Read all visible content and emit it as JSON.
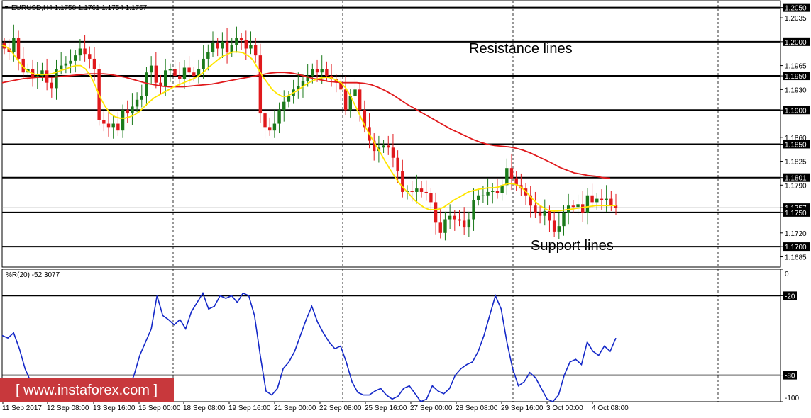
{
  "chart_data": [
    {
      "type": "candlestick",
      "symbol_header": "EURUSD,H4  1.1758 1.1761 1.1754 1.1757",
      "ylim": [
        1.167,
        1.206
      ],
      "price_ticks": [
        "1.2050",
        "1.2035",
        "1.2000",
        "1.1965",
        "1.1950",
        "1.1930",
        "1.1900",
        "1.1860",
        "1.1850",
        "1.1825",
        "1.1801",
        "1.1790",
        "1.1757",
        "1.1750",
        "1.1720",
        "1.1700",
        "1.1685"
      ],
      "highlighted_ticks": [
        "1.2050",
        "1.2000",
        "1.1950",
        "1.1900",
        "1.1850",
        "1.1801",
        "1.1757",
        "1.1750",
        "1.1700"
      ],
      "levels": [
        1.205,
        1.2,
        1.195,
        1.19,
        1.185,
        1.1801,
        1.175,
        1.17
      ],
      "current_price": 1.1757,
      "annotations": [
        "Resistance lines",
        "Support lines"
      ],
      "closes": [
        1.199,
        1.1985,
        1.2005,
        1.1975,
        1.1955,
        1.196,
        1.1948,
        1.195,
        1.1958,
        1.194,
        1.1932,
        1.196,
        1.1965,
        1.1968,
        1.1972,
        1.198,
        1.199,
        1.1982,
        1.1975,
        1.196,
        1.1885,
        1.188,
        1.1875,
        1.188,
        1.187,
        1.19,
        1.1895,
        1.1905,
        1.1915,
        1.192,
        1.1955,
        1.1965,
        1.194,
        1.1935,
        1.1958,
        1.196,
        1.195,
        1.1945,
        1.1962,
        1.1955,
        1.195,
        1.196,
        1.1975,
        1.1985,
        1.1998,
        1.199,
        1.2,
        1.1985,
        1.1995,
        1.2005,
        1.2002,
        1.199,
        1.1995,
        1.198,
        1.1895,
        1.1875,
        1.187,
        1.188,
        1.19,
        1.1912,
        1.192,
        1.193,
        1.1935,
        1.1942,
        1.195,
        1.196,
        1.1955,
        1.196,
        1.195,
        1.1945,
        1.194,
        1.193,
        1.19,
        1.192,
        1.193,
        1.19,
        1.1875,
        1.1855,
        1.184,
        1.1845,
        1.1848,
        1.1845,
        1.183,
        1.181,
        1.178,
        1.1782,
        1.178,
        1.1785,
        1.178,
        1.1778,
        1.1765,
        1.1735,
        1.172,
        1.174,
        1.1745,
        1.174,
        1.1738,
        1.1728,
        1.174,
        1.1768,
        1.1775,
        1.1775,
        1.178,
        1.1782,
        1.1778,
        1.179,
        1.1815,
        1.18,
        1.179,
        1.1785,
        1.1775,
        1.176,
        1.175,
        1.1745,
        1.1752,
        1.1738,
        1.1722,
        1.173,
        1.175,
        1.176,
        1.1758,
        1.1762,
        1.175,
        1.1775,
        1.1765,
        1.177,
        1.1768,
        1.177,
        1.176,
        1.1757
      ],
      "ma_fast": [
        1.1995,
        1.1992,
        1.1985,
        1.1975,
        1.1965,
        1.1958,
        1.1954,
        1.1952,
        1.1952,
        1.1952,
        1.1953,
        1.1955,
        1.1958,
        1.196,
        1.1963,
        1.1965,
        1.1965,
        1.196,
        1.195,
        1.1935,
        1.1918,
        1.1905,
        1.1895,
        1.189,
        1.1888,
        1.1888,
        1.189,
        1.1893,
        1.1898,
        1.1905,
        1.1912,
        1.1918,
        1.1922,
        1.1926,
        1.193,
        1.1934,
        1.1937,
        1.194,
        1.1943,
        1.1946,
        1.195,
        1.1955,
        1.1962,
        1.1968,
        1.1974,
        1.1979,
        1.1982,
        1.1985,
        1.1985,
        1.1984,
        1.198,
        1.1974,
        1.1962,
        1.195,
        1.194,
        1.193,
        1.1924,
        1.192,
        1.192,
        1.1924,
        1.1928,
        1.1933,
        1.1938,
        1.1942,
        1.1945,
        1.1947,
        1.1948,
        1.1947,
        1.1944,
        1.194,
        1.1932,
        1.192,
        1.1905,
        1.189,
        1.1875,
        1.1862,
        1.185,
        1.1838,
        1.1825,
        1.1813,
        1.1802,
        1.1792,
        1.1784,
        1.1776,
        1.1768,
        1.1762,
        1.1757,
        1.1754,
        1.1754,
        1.1755,
        1.1758,
        1.1763,
        1.1768,
        1.1772,
        1.1776,
        1.178,
        1.1782,
        1.1784,
        1.1785,
        1.1786,
        1.1786,
        1.1787,
        1.179,
        1.1792,
        1.1792,
        1.179,
        1.1785,
        1.1778,
        1.177,
        1.1763,
        1.1758,
        1.1754,
        1.1752,
        1.1752,
        1.1753,
        1.1754,
        1.1755,
        1.1756,
        1.1757,
        1.1758,
        1.1759,
        1.176,
        1.176,
        1.176,
        1.176,
        1.176
      ],
      "ma_slow": [
        1.194,
        1.1942,
        1.1944,
        1.1946,
        1.1947,
        1.1948,
        1.1948,
        1.1948,
        1.1949,
        1.195,
        1.1951,
        1.1952,
        1.1953,
        1.1953,
        1.1953,
        1.1952,
        1.195,
        1.1948,
        1.1945,
        1.1942,
        1.1939,
        1.1937,
        1.1935,
        1.1934,
        1.1934,
        1.1934,
        1.1935,
        1.1936,
        1.1937,
        1.1938,
        1.194,
        1.1942,
        1.1944,
        1.1946,
        1.1948,
        1.195,
        1.1952,
        1.1954,
        1.1955,
        1.1955,
        1.1954,
        1.1952,
        1.1949,
        1.1946,
        1.1944,
        1.1942,
        1.1941,
        1.194,
        1.194,
        1.194,
        1.1939,
        1.1937,
        1.1933,
        1.1928,
        1.1922,
        1.1915,
        1.1908,
        1.1902,
        1.1896,
        1.189,
        1.1884,
        1.1878,
        1.1872,
        1.1867,
        1.1862,
        1.1857,
        1.1853,
        1.185,
        1.1848,
        1.1847,
        1.1846,
        1.1844,
        1.1841,
        1.1837,
        1.1832,
        1.1827,
        1.1822,
        1.1816,
        1.1812,
        1.1808,
        1.1806,
        1.1804,
        1.1803,
        1.1801,
        1.18
      ]
    },
    {
      "type": "line",
      "indicator_header": "%R(20) -52.3077",
      "ylim": [
        -100,
        0
      ],
      "ticks": [
        "0",
        "-20",
        "-80",
        "-100"
      ],
      "highlighted_ticks": [
        "-20",
        "-80"
      ],
      "levels": [
        -20,
        -80
      ],
      "values": [
        -50,
        -52,
        -48,
        -60,
        -75,
        -85,
        -90,
        -90,
        -88,
        -92,
        -95,
        -92,
        -88,
        -85,
        -88,
        -90,
        -95,
        -100,
        -98,
        -95,
        -88,
        -92,
        -90,
        -80,
        -65,
        -55,
        -45,
        -20,
        -35,
        -38,
        -42,
        -38,
        -45,
        -32,
        -25,
        -18,
        -30,
        -28,
        -20,
        -22,
        -20,
        -25,
        -18,
        -20,
        -35,
        -65,
        -92,
        -95,
        -90,
        -75,
        -70,
        -62,
        -50,
        -38,
        -28,
        -40,
        -48,
        -55,
        -60,
        -58,
        -70,
        -85,
        -93,
        -95,
        -95,
        -92,
        -90,
        -95,
        -98,
        -96,
        -90,
        -88,
        -94,
        -100,
        -98,
        -88,
        -92,
        -94,
        -90,
        -80,
        -75,
        -72,
        -70,
        -62,
        -50,
        -35,
        -20,
        -30,
        -55,
        -75,
        -88,
        -85,
        -78,
        -82,
        -90,
        -98,
        -100,
        -95,
        -80,
        -70,
        -68,
        -72,
        -55,
        -62,
        -65,
        -58,
        -62,
        -52
      ],
      "x_labels": [
        "11 Sep 2017",
        "12 Sep 08:00",
        "13 Sep 16:00",
        "15 Sep 00:00",
        "18 Sep 08:00",
        "19 Sep 16:00",
        "21 Sep 00:00",
        "22 Sep 08:00",
        "25 Sep 16:00",
        "27 Sep 00:00",
        "28 Sep 08:00",
        "29 Sep 16:00",
        "3 Oct 00:00",
        "4 Oct 08:00"
      ]
    }
  ],
  "watermark": "[ www.instaforex.com ]",
  "colors": {
    "bull": "#1b7a1b",
    "bear": "#e0191c",
    "ma_fast": "#ffe600",
    "ma_slow": "#e0191c",
    "wpr": "#1428c8",
    "level": "#000000",
    "grid": "#000000"
  }
}
